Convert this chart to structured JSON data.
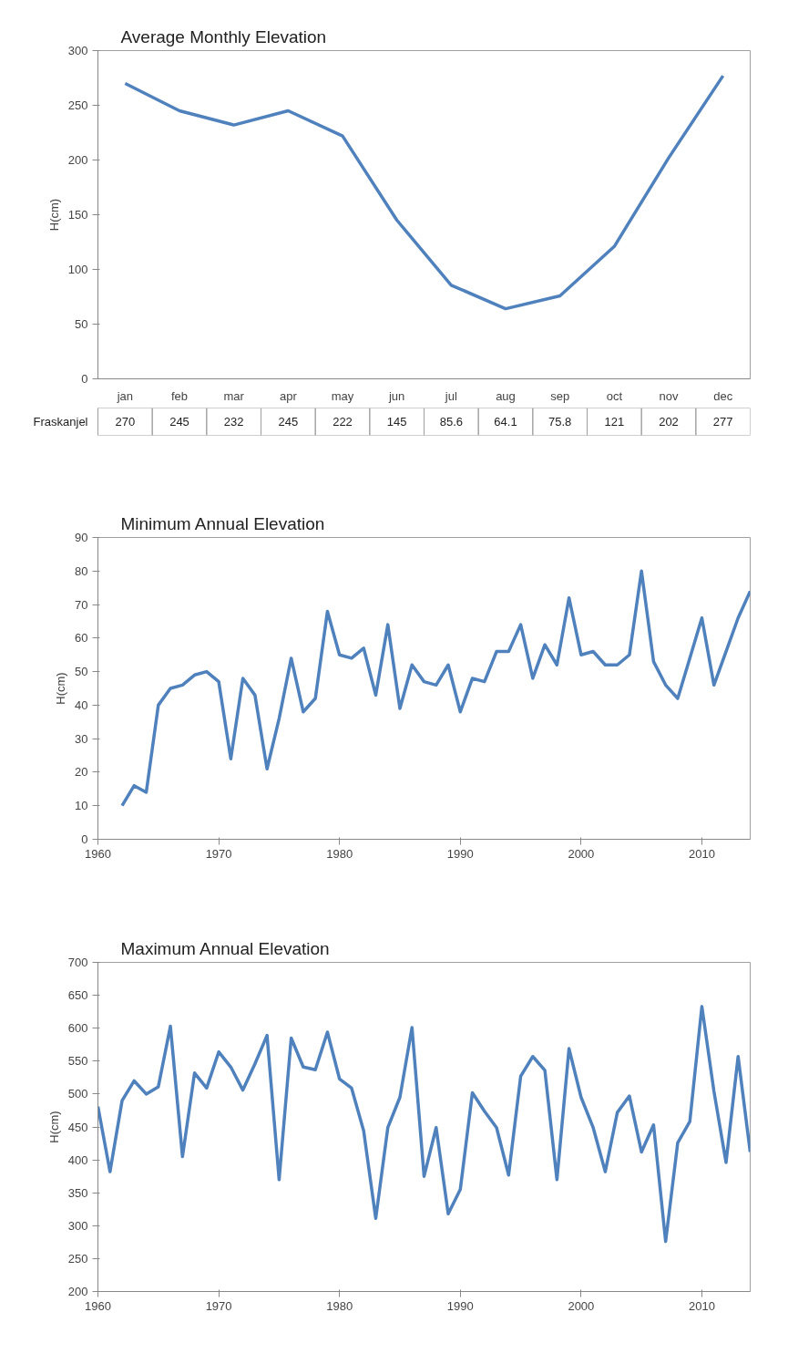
{
  "chart_data": [
    {
      "type": "line",
      "title": "Average Monthly Elevation",
      "ylabel": "H(cm)",
      "categories": [
        "jan",
        "feb",
        "mar",
        "apr",
        "may",
        "jun",
        "jul",
        "aug",
        "sep",
        "oct",
        "nov",
        "dec"
      ],
      "series": [
        {
          "name": "Fraskanjel",
          "color": "#4f81bd",
          "values": [
            270,
            245,
            232,
            245,
            222,
            145,
            85.6,
            64.1,
            75.8,
            121,
            202,
            277
          ]
        }
      ],
      "ylim": [
        0,
        300
      ],
      "yticks": [
        0,
        50,
        100,
        150,
        200,
        250,
        300
      ],
      "grid": false,
      "data_labels": true
    },
    {
      "type": "line",
      "title": "Minimum Annual Elevation",
      "ylabel": "H(cm)",
      "x": [
        1962,
        1963,
        1964,
        1965,
        1966,
        1967,
        1968,
        1969,
        1970,
        1971,
        1972,
        1973,
        1974,
        1975,
        1976,
        1977,
        1978,
        1979,
        1980,
        1981,
        1982,
        1983,
        1984,
        1985,
        1986,
        1987,
        1988,
        1989,
        1990,
        1991,
        1992,
        1993,
        1994,
        1995,
        1996,
        1997,
        1998,
        1999,
        2000,
        2001,
        2002,
        2003,
        2004,
        2005,
        2006,
        2007,
        2008,
        2009,
        2010,
        2011,
        2012,
        2013,
        2014
      ],
      "series": [
        {
          "color": "#4f81bd",
          "values": [
            10,
            16,
            14,
            40,
            45,
            46,
            49,
            50,
            47,
            24,
            48,
            43,
            21,
            36,
            54,
            38,
            42,
            68,
            55,
            54,
            57,
            43,
            64,
            39,
            52,
            47,
            46,
            52,
            38,
            48,
            47,
            56,
            56,
            64,
            48,
            58,
            52,
            72,
            55,
            56,
            52,
            52,
            55,
            80,
            53,
            46,
            42,
            54,
            66,
            46,
            56,
            66,
            74
          ]
        }
      ],
      "xlim": [
        1960,
        2014
      ],
      "xticks": [
        1960,
        1970,
        1980,
        1990,
        2000,
        2010
      ],
      "ylim": [
        0,
        90
      ],
      "yticks": [
        0,
        10,
        20,
        30,
        40,
        50,
        60,
        70,
        80,
        90
      ],
      "grid": false
    },
    {
      "type": "line",
      "title": "Maximum Annual Elevation",
      "ylabel": "H(cm)",
      "x": [
        1960,
        1961,
        1962,
        1963,
        1964,
        1965,
        1966,
        1967,
        1968,
        1969,
        1970,
        1971,
        1972,
        1973,
        1974,
        1975,
        1976,
        1977,
        1978,
        1979,
        1980,
        1981,
        1982,
        1983,
        1984,
        1985,
        1986,
        1987,
        1988,
        1989,
        1990,
        1991,
        1992,
        1993,
        1994,
        1995,
        1996,
        1997,
        1998,
        1999,
        2000,
        2001,
        2002,
        2003,
        2004,
        2005,
        2006,
        2007,
        2008,
        2009,
        2010,
        2011,
        2012,
        2013,
        2014
      ],
      "series": [
        {
          "color": "#4f81bd",
          "values": [
            481,
            382,
            490,
            520,
            500,
            511,
            603,
            405,
            532,
            509,
            564,
            541,
            506,
            546,
            589,
            370,
            585,
            541,
            537,
            594,
            523,
            509,
            444,
            311,
            449,
            495,
            601,
            375,
            449,
            318,
            355,
            502,
            474,
            449,
            377,
            527,
            557,
            536,
            370,
            569,
            495,
            449,
            382,
            472,
            497,
            412,
            453,
            276,
            426,
            458,
            633,
            504,
            396,
            557,
            412
          ]
        }
      ],
      "xlim": [
        1960,
        2014
      ],
      "xticks": [
        1960,
        1970,
        1980,
        1990,
        2000,
        2010
      ],
      "ylim": [
        200,
        700
      ],
      "yticks": [
        200,
        250,
        300,
        350,
        400,
        450,
        500,
        550,
        600,
        650,
        700
      ],
      "grid": false
    }
  ]
}
